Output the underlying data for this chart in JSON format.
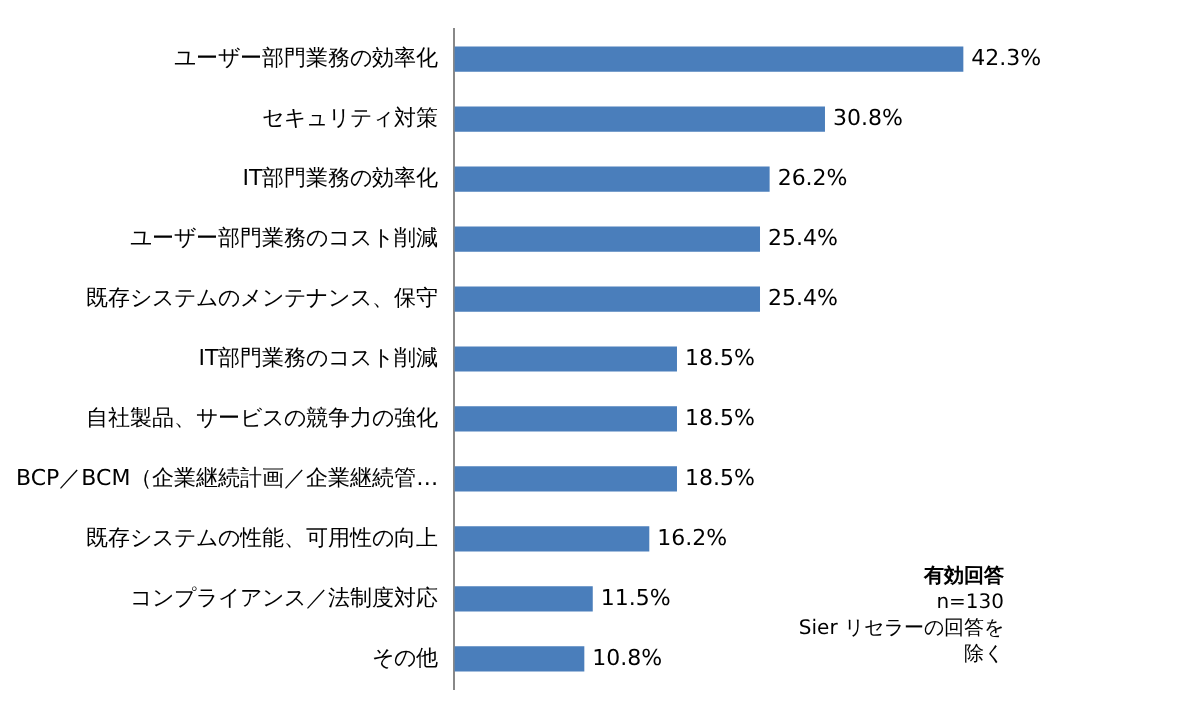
{
  "chart_data": {
    "type": "bar",
    "orientation": "horizontal",
    "categories": [
      "ユーザー部門業務の効率化",
      "セキュリティ対策",
      "IT部門業務の効率化",
      "ユーザー部門業務のコスト削減",
      "既存システムのメンテナンス、保守",
      "IT部門業務のコスト削減",
      "自社製品、サービスの競争力の強化",
      "BCP／BCM（企業継続計画／企業継続管…",
      "既存システムの性能、可用性の向上",
      "コンプライアンス／法制度対応",
      "その他"
    ],
    "values": [
      42.3,
      30.8,
      26.2,
      25.4,
      25.4,
      18.5,
      18.5,
      18.5,
      16.2,
      11.5,
      10.8
    ],
    "value_labels": [
      "42.3%",
      "30.8%",
      "26.2%",
      "25.4%",
      "25.4%",
      "18.5%",
      "18.5%",
      "18.5%",
      "16.2%",
      "11.5%",
      "10.8%"
    ],
    "color": "#4a7ebb",
    "grid": false,
    "legend": false,
    "annotations": [
      "有効回答",
      "n=130",
      "Sier リセラーの回答を除く"
    ]
  }
}
